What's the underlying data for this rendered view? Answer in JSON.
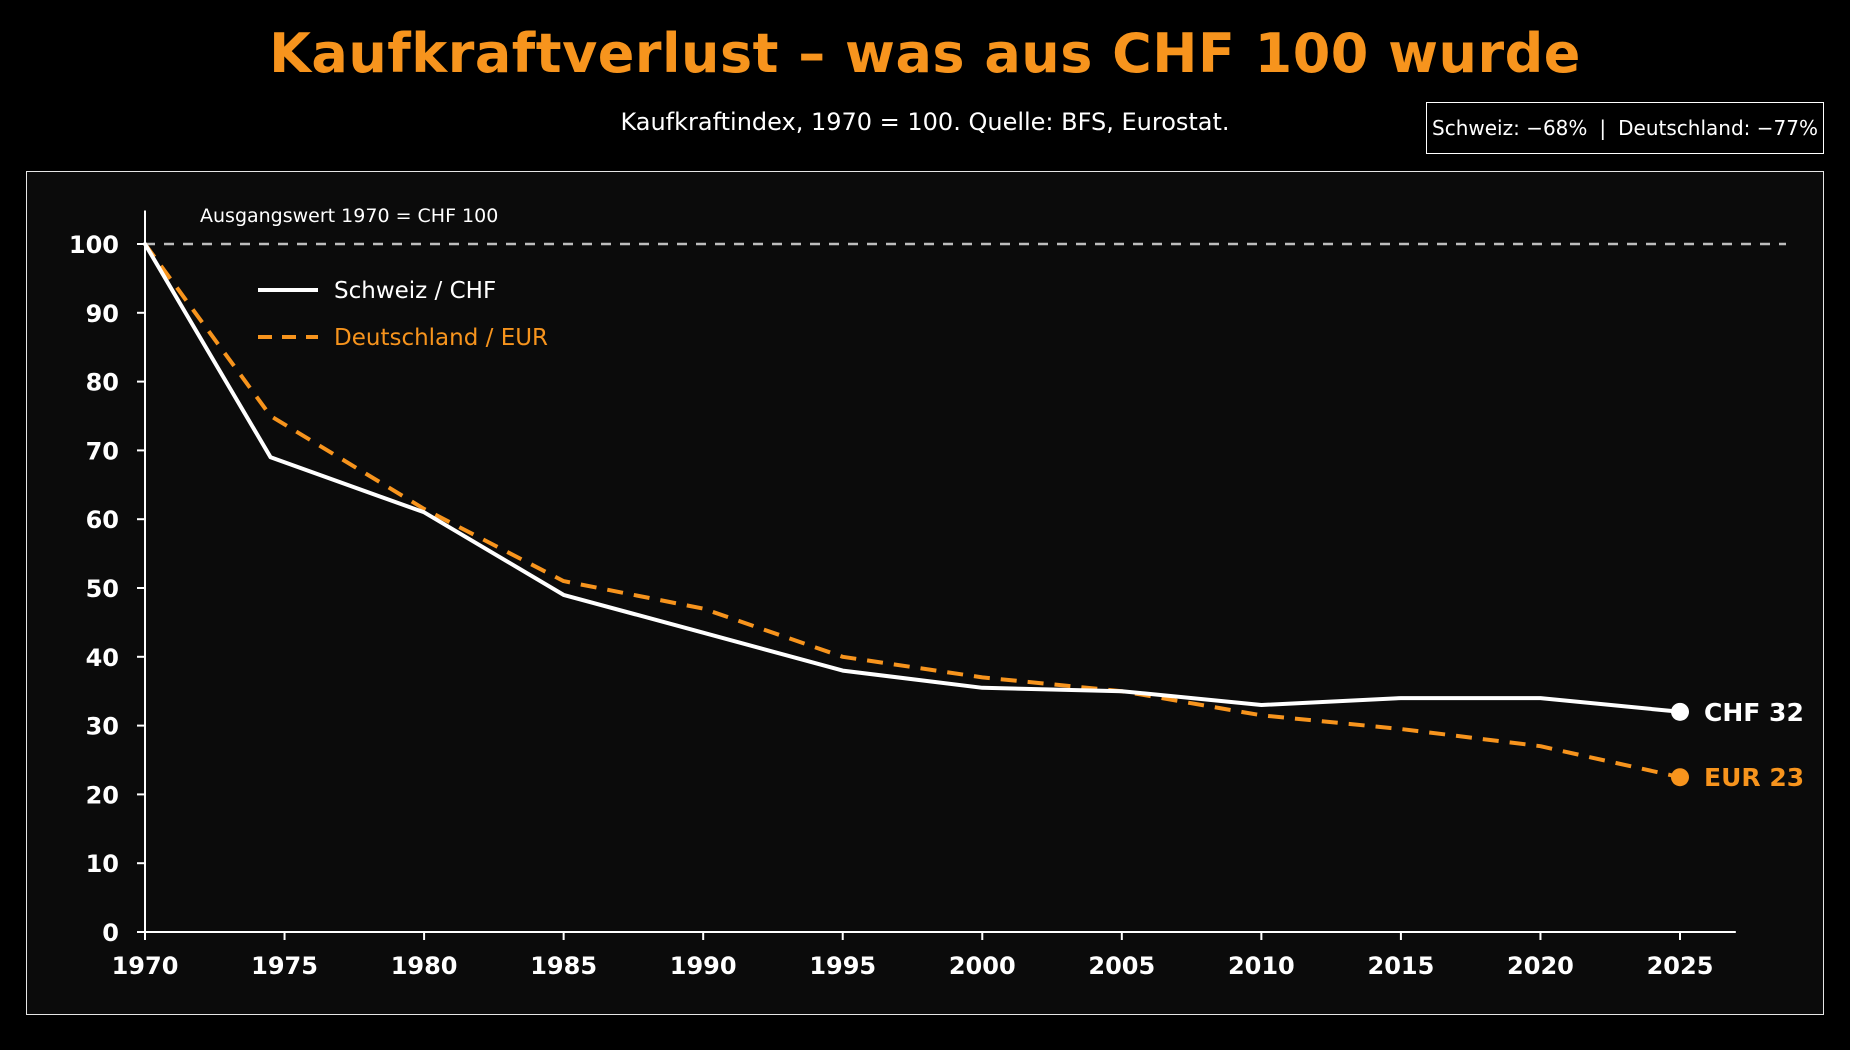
{
  "colors": {
    "accent": "#f7941d",
    "background": "#000000",
    "panel": "#0b0b0b",
    "swiss_line": "#ffffff",
    "german_line": "#f7941d",
    "reference_line": "#bdbdbd"
  },
  "summary": {
    "swiss": "Schweiz: −68%",
    "separator": "|",
    "german": "Deutschland: −77%"
  },
  "chart_data": {
    "type": "line",
    "title": "Kaufkraftverlust – was aus CHF 100 wurde",
    "subtitle": "Kaufkraftindex, 1970 = 100. Quelle: BFS, Eurostat.",
    "xlabel": "",
    "ylabel": "",
    "x_ticks": [
      1970,
      1975,
      1980,
      1985,
      1990,
      1995,
      2000,
      2005,
      2010,
      2015,
      2020,
      2025
    ],
    "y_ticks": [
      0,
      10,
      20,
      30,
      40,
      50,
      60,
      70,
      80,
      90,
      100
    ],
    "xlim": [
      1970,
      2027
    ],
    "ylim": [
      0,
      104
    ],
    "grid": false,
    "legend_position": "top-left",
    "reference_line": {
      "y": 100,
      "label": "Ausgangswert 1970 = CHF 100"
    },
    "series": [
      {
        "name": "Schweiz / CHF",
        "style": "solid",
        "color": "#ffffff",
        "x": [
          1970,
          1974.5,
          1980,
          1985,
          1990,
          1995,
          2000,
          2005,
          2010,
          2015,
          2020,
          2025
        ],
        "y": [
          100,
          69,
          61,
          49,
          43.5,
          38,
          35.5,
          35,
          33,
          34,
          34,
          32
        ],
        "end_label": "CHF 32"
      },
      {
        "name": "Deutschland / EUR",
        "style": "dashed",
        "color": "#f7941d",
        "x": [
          1970,
          1974.5,
          1980,
          1985,
          1990,
          1995,
          2000,
          2005,
          2010,
          2015,
          2020,
          2025
        ],
        "y": [
          100,
          75,
          61.5,
          51,
          47,
          40,
          37,
          35,
          31.5,
          29.5,
          27,
          22.5
        ],
        "end_label": "EUR 23"
      }
    ]
  }
}
